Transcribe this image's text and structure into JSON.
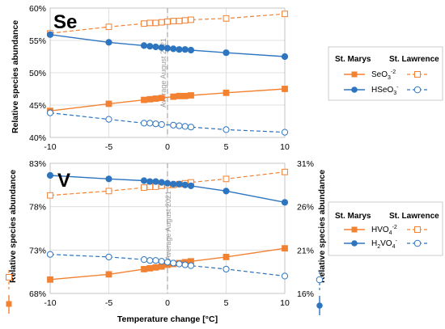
{
  "colors": {
    "orange": "#F28131",
    "blue": "#2E75C0",
    "grid": "#D9D9D9",
    "avg": "#A6A6A6"
  },
  "xaxis": {
    "label": "Temperature change [°C]",
    "ticks": [
      -10,
      -5,
      0,
      5,
      10
    ],
    "tick_labels": [
      "-10",
      "-5",
      "0",
      "5",
      "10"
    ]
  },
  "avg_label": "Average August 2021",
  "legend_headers": {
    "left": "St. Marys",
    "right": "St. Lawrence"
  },
  "chart_data": [
    {
      "type": "line",
      "title": "Se",
      "ylabel": "Relative species abundance",
      "xlim": [
        -10,
        10
      ],
      "ylim": [
        40,
        60
      ],
      "ytick_labels": [
        "40%",
        "45%",
        "50%",
        "55%",
        "60%"
      ],
      "yticks": [
        40,
        45,
        50,
        55,
        60
      ],
      "legend": {
        "row1_label": "SeO",
        "row1_sub": "3",
        "row1_sup": "-2",
        "row2_label": "HSeO",
        "row2_sub": "3",
        "row2_sup": "-"
      },
      "series": [
        {
          "name": "SeO3-2 St. Marys",
          "site": "St. Marys",
          "color": "orange",
          "marker": "square-filled",
          "dashed": false,
          "x": [
            -10,
            -5,
            -2,
            -1.5,
            -1,
            -0.5,
            0.5,
            1,
            1.5,
            2,
            5,
            10
          ],
          "y": [
            44.1,
            45.2,
            45.8,
            45.9,
            46.0,
            46.1,
            46.3,
            46.4,
            46.4,
            46.5,
            46.9,
            47.5
          ]
        },
        {
          "name": "SeO3-2 St. Lawrence",
          "site": "St. Lawrence",
          "color": "orange",
          "marker": "square-open",
          "dashed": true,
          "x": [
            -10,
            -5,
            -2,
            -1.5,
            -1,
            -0.5,
            0,
            0.5,
            1,
            1.5,
            2,
            5,
            10
          ],
          "y": [
            56.1,
            57.1,
            57.6,
            57.7,
            57.7,
            57.8,
            57.9,
            58.0,
            58.0,
            58.1,
            58.2,
            58.4,
            59.1
          ]
        },
        {
          "name": "HSeO3- St. Marys",
          "site": "St. Marys",
          "color": "blue",
          "marker": "circle-filled",
          "dashed": false,
          "x": [
            -10,
            -5,
            -2,
            -1.5,
            -1,
            -0.5,
            0,
            0.5,
            1,
            1.5,
            2,
            5,
            10
          ],
          "y": [
            55.9,
            54.7,
            54.2,
            54.1,
            54.0,
            53.9,
            53.8,
            53.7,
            53.6,
            53.6,
            53.5,
            53.1,
            52.5
          ]
        },
        {
          "name": "HSeO3- St. Lawrence",
          "site": "St. Lawrence",
          "color": "blue",
          "marker": "circle-open",
          "dashed": true,
          "x": [
            -10,
            -5,
            -2,
            -1.5,
            -1,
            -0.5,
            0.5,
            1,
            1.5,
            2,
            5,
            10
          ],
          "y": [
            43.8,
            42.8,
            42.2,
            42.2,
            42.1,
            42.0,
            41.9,
            41.8,
            41.7,
            41.6,
            41.2,
            40.8
          ]
        }
      ]
    },
    {
      "type": "line",
      "title": "V",
      "ylabel": "Relative species abundance",
      "xlim": [
        -10,
        10
      ],
      "ylim": [
        68,
        83
      ],
      "ytick_labels": [
        "68%",
        "73%",
        "78%",
        "83%"
      ],
      "yticks": [
        68,
        73,
        78,
        83
      ],
      "ylim_right": [
        16,
        31
      ],
      "ytick_labels_right": [
        "16%",
        "21%",
        "26%",
        "31%"
      ],
      "yticks_right": [
        16,
        21,
        26,
        31
      ],
      "legend": {
        "row1_label": "HVO",
        "row1_sub": "4",
        "row1_sup": "-2",
        "row2_label": "H",
        "row2_sub_a": "2",
        "row2_label_b": "VO",
        "row2_sub": "4",
        "row2_sup": "-"
      },
      "series": [
        {
          "name": "HVO4-2 St. Marys",
          "site": "St. Marys",
          "axis": "right",
          "color": "orange",
          "marker": "square-filled",
          "dashed": false,
          "x": [
            -10,
            -5,
            -2,
            -1.5,
            -1,
            -0.5,
            0,
            0.5,
            1,
            1.5,
            2,
            5,
            10
          ],
          "y": [
            17.6,
            18.2,
            18.8,
            18.9,
            19.0,
            19.1,
            19.3,
            19.4,
            19.5,
            19.6,
            19.7,
            20.2,
            21.2
          ]
        },
        {
          "name": "HVO4-2 St. Lawrence",
          "site": "St. Lawrence",
          "axis": "left",
          "color": "orange",
          "marker": "square-open",
          "dashed": true,
          "x": [
            -10,
            -5,
            -2,
            -1.5,
            -1,
            -0.5,
            0,
            0.5,
            1,
            1.5,
            2,
            5,
            10
          ],
          "y": [
            79.3,
            79.8,
            80.2,
            80.3,
            80.3,
            80.4,
            80.5,
            80.5,
            80.6,
            80.7,
            80.8,
            81.2,
            82.0
          ]
        },
        {
          "name": "H2VO4- St. Marys",
          "site": "St. Marys",
          "axis": "left",
          "color": "blue",
          "marker": "circle-filled",
          "dashed": false,
          "x": [
            -10,
            -5,
            -2,
            -1.5,
            -1,
            -0.5,
            0,
            0.5,
            1,
            1.5,
            2,
            5,
            10
          ],
          "y": [
            81.6,
            81.2,
            81.0,
            80.9,
            80.9,
            80.8,
            80.7,
            80.6,
            80.6,
            80.5,
            80.4,
            79.8,
            78.5
          ]
        },
        {
          "name": "H2VO4- St. Lawrence",
          "site": "St. Lawrence",
          "axis": "right",
          "color": "blue",
          "marker": "circle-open",
          "dashed": true,
          "x": [
            -10,
            -5,
            -2,
            -1.5,
            -1,
            -0.5,
            0,
            0.5,
            1,
            1.5,
            2,
            5,
            10
          ],
          "y": [
            20.5,
            20.2,
            19.9,
            19.8,
            19.8,
            19.7,
            19.6,
            19.5,
            19.4,
            19.3,
            19.2,
            18.8,
            18.0
          ]
        }
      ]
    }
  ]
}
